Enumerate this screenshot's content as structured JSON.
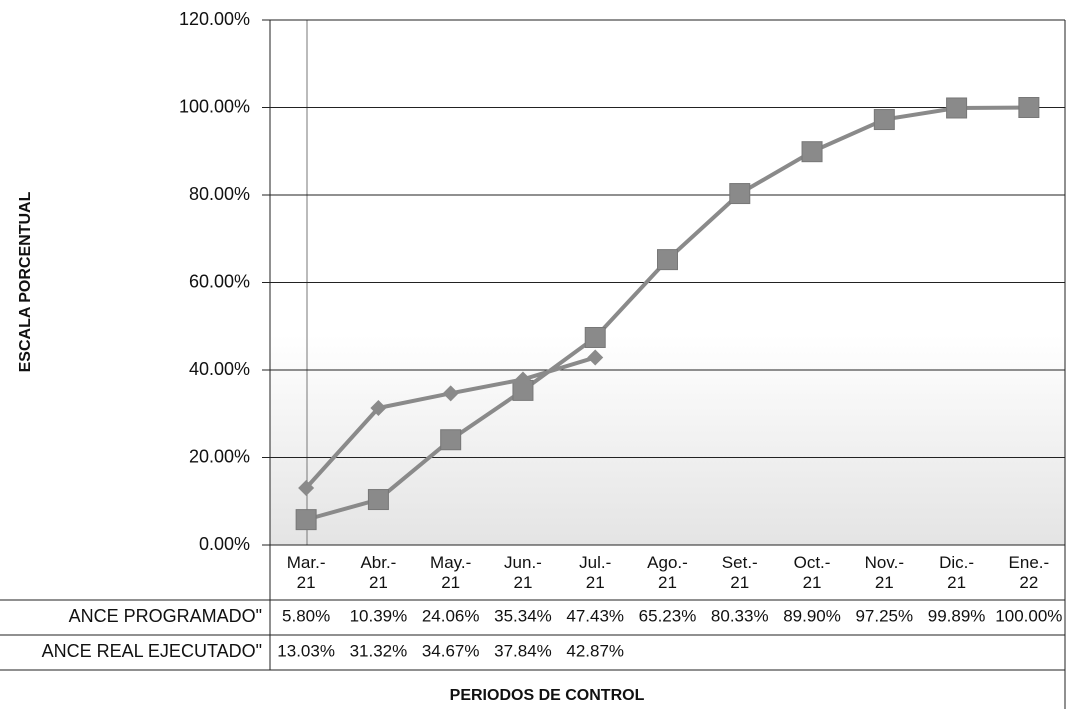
{
  "chart_data": {
    "type": "line",
    "y_label": "ESCALA PORCENTUAL",
    "x_label": "PERIODOS DE CONTROL",
    "categories": [
      "Mar.-\n21",
      "Abr.-\n21",
      "May.-\n21",
      "Jun.-\n21",
      "Jul.-\n21",
      "Ago.-\n21",
      "Set.-\n21",
      "Oct.-\n21",
      "Nov.-\n21",
      "Dic.-\n21",
      "Ene.-\n22"
    ],
    "series": [
      {
        "name": "ANCE PROGRAMADO\"",
        "color": "#8a8a8a",
        "marker": "square",
        "values": [
          5.8,
          10.39,
          24.06,
          35.34,
          47.43,
          65.23,
          80.33,
          89.9,
          97.25,
          99.89,
          100
        ],
        "value_labels": [
          "5.80%",
          "10.39%",
          "24.06%",
          "35.34%",
          "47.43%",
          "65.23%",
          "80.33%",
          "89.90%",
          "97.25%",
          "99.89%",
          "100.00%"
        ]
      },
      {
        "name": "ANCE REAL EJECUTADO\"",
        "color": "#8a8a8a",
        "marker": "diamond",
        "values": [
          13.03,
          31.32,
          34.67,
          37.84,
          42.87,
          null,
          null,
          null,
          null,
          null,
          null
        ],
        "value_labels": [
          "13.03%",
          "31.32%",
          "34.67%",
          "37.84%",
          "42.87%",
          null,
          null,
          null,
          null,
          null,
          null
        ]
      }
    ],
    "ylim": [
      0,
      120
    ],
    "yticks": [
      {
        "value": 0,
        "label": "0.00%"
      },
      {
        "value": 20,
        "label": "20.00%"
      },
      {
        "value": 40,
        "label": "40.00%"
      },
      {
        "value": 60,
        "label": "60.00%"
      },
      {
        "value": 80,
        "label": "80.00%"
      },
      {
        "value": 100,
        "label": "100.00%"
      },
      {
        "value": 120,
        "label": "120.00%"
      }
    ],
    "grid": true
  }
}
